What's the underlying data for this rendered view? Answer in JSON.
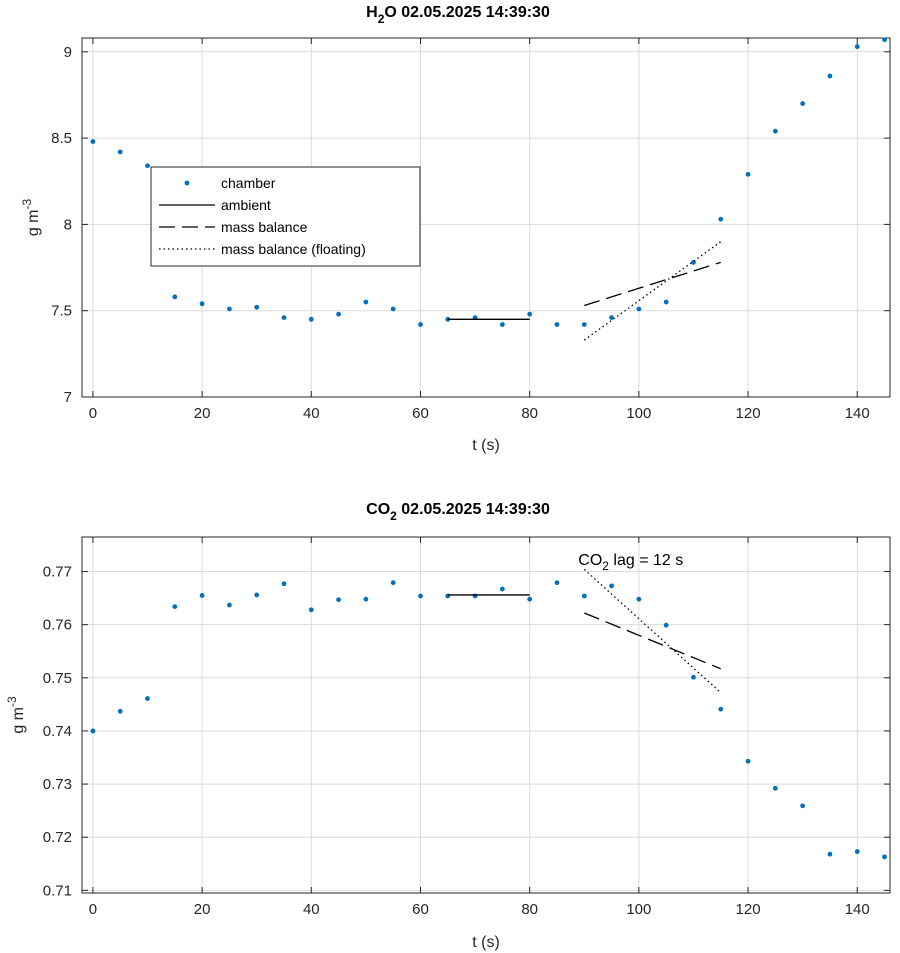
{
  "chart_data": [
    {
      "type": "scatter",
      "title_parts": {
        "base": "H",
        "sub": "2",
        "rest": "O  02.05.2025 14:39:30"
      },
      "xlabel": "t (s)",
      "ylabel_parts": {
        "base": "g m",
        "sup": "-3"
      },
      "xlim": [
        -2,
        146
      ],
      "ylim": [
        7,
        9.08
      ],
      "xticks": [
        0,
        20,
        40,
        60,
        80,
        100,
        120,
        140
      ],
      "yticks": [
        7,
        7.5,
        8,
        8.5,
        9
      ],
      "ytick_labels": [
        "7",
        "7.5",
        "8",
        "8.5",
        "9"
      ],
      "grid": true,
      "legend": {
        "placement": "upper-left-inside",
        "entries": [
          {
            "label": "chamber",
            "style": "dot"
          },
          {
            "label": "ambient",
            "style": "solid"
          },
          {
            "label": "mass balance",
            "style": "dashed"
          },
          {
            "label": "mass balance (floating)",
            "style": "dotted"
          }
        ]
      },
      "series": [
        {
          "name": "chamber",
          "style": "dot",
          "color": "#0072bd",
          "x": [
            0,
            5,
            10,
            15,
            20,
            25,
            30,
            35,
            40,
            45,
            50,
            55,
            60,
            65,
            70,
            75,
            80,
            85,
            90,
            95,
            100,
            105,
            110,
            115,
            120,
            125,
            130,
            135,
            140,
            145
          ],
          "y": [
            8.48,
            8.42,
            8.34,
            7.58,
            7.54,
            7.51,
            7.52,
            7.46,
            7.45,
            7.48,
            7.55,
            7.51,
            7.42,
            7.45,
            7.46,
            7.42,
            7.48,
            7.42,
            7.42,
            7.46,
            7.51,
            7.55,
            7.78,
            8.03,
            8.29,
            8.54,
            8.7,
            8.86,
            9.03,
            9.07
          ]
        },
        {
          "name": "ambient",
          "style": "solid",
          "color": "#000000",
          "x": [
            65,
            80
          ],
          "y": [
            7.45,
            7.45
          ]
        },
        {
          "name": "mass balance",
          "style": "dashed",
          "color": "#000000",
          "x": [
            90,
            115
          ],
          "y": [
            7.53,
            7.78
          ]
        },
        {
          "name": "mass balance (floating)",
          "style": "dotted",
          "color": "#000000",
          "x": [
            90,
            115
          ],
          "y": [
            7.33,
            7.9
          ]
        }
      ]
    },
    {
      "type": "scatter",
      "title_parts": {
        "base": "CO",
        "sub": "2",
        "rest": "  02.05.2025 14:39:30"
      },
      "xlabel": "t (s)",
      "ylabel_parts": {
        "base": "g m",
        "sup": "-3"
      },
      "xlim": [
        -2,
        146
      ],
      "ylim": [
        0.7095,
        0.7765
      ],
      "xticks": [
        0,
        20,
        40,
        60,
        80,
        100,
        120,
        140
      ],
      "yticks": [
        0.71,
        0.72,
        0.73,
        0.74,
        0.75,
        0.76,
        0.77
      ],
      "ytick_labels": [
        "0.71",
        "0.72",
        "0.73",
        "0.74",
        "0.75",
        "0.76",
        "0.77"
      ],
      "grid": true,
      "annotation": {
        "base": "CO",
        "sub": "2",
        "rest": " lag = 12 s",
        "x": 90,
        "y": 0.7712
      },
      "series": [
        {
          "name": "chamber",
          "style": "dot",
          "color": "#0072bd",
          "x": [
            0,
            5,
            10,
            15,
            20,
            25,
            30,
            35,
            40,
            45,
            50,
            55,
            60,
            65,
            70,
            75,
            80,
            85,
            90,
            95,
            100,
            105,
            110,
            115,
            120,
            125,
            130,
            135,
            140,
            145
          ],
          "y": [
            0.74,
            0.7437,
            0.7461,
            0.7634,
            0.7655,
            0.7637,
            0.7656,
            0.7677,
            0.7628,
            0.7647,
            0.7648,
            0.7679,
            0.7654,
            0.7654,
            0.7654,
            0.7667,
            0.7648,
            0.7679,
            0.7654,
            0.7673,
            0.7648,
            0.7599,
            0.7501,
            0.7441,
            0.7343,
            0.7292,
            0.7259,
            0.7168,
            0.7173,
            0.7163
          ]
        },
        {
          "name": "ambient",
          "style": "solid",
          "color": "#000000",
          "x": [
            65,
            80
          ],
          "y": [
            0.7656,
            0.7656
          ]
        },
        {
          "name": "mass balance",
          "style": "dashed",
          "color": "#000000",
          "x": [
            90,
            115
          ],
          "y": [
            0.7622,
            0.7517
          ]
        },
        {
          "name": "mass balance (floating)",
          "style": "dotted",
          "color": "#000000",
          "x": [
            90,
            115
          ],
          "y": [
            0.7704,
            0.7472
          ]
        }
      ]
    }
  ]
}
